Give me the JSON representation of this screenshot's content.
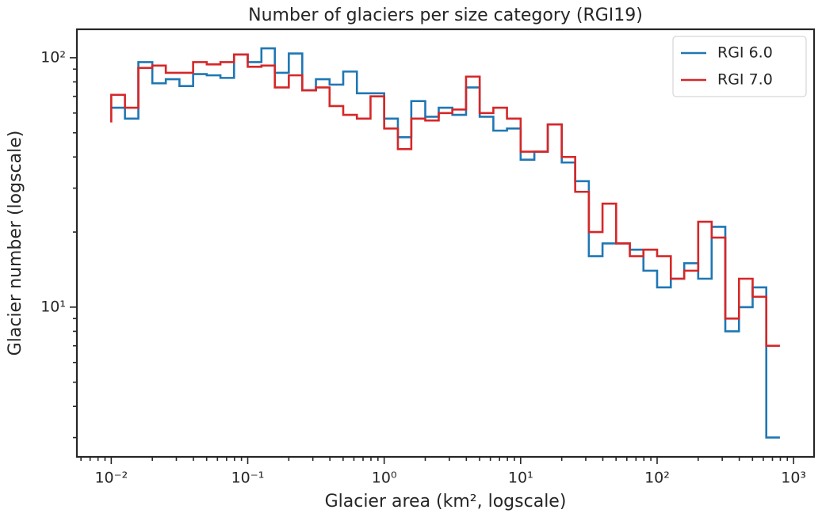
{
  "chart_data": {
    "type": "line",
    "step": "pre",
    "title": "Number of glaciers per size category (RGI19)",
    "x_label": "Glacier area (km², logscale)",
    "y_label": "Glacier number (logscale)",
    "x_log": true,
    "y_log": true,
    "legend": "upper right",
    "x": [
      0.01,
      0.0126,
      0.0158,
      0.02,
      0.0251,
      0.0316,
      0.0398,
      0.0501,
      0.0631,
      0.0794,
      0.1,
      0.126,
      0.158,
      0.2,
      0.251,
      0.316,
      0.398,
      0.501,
      0.631,
      0.794,
      1,
      1.26,
      1.58,
      2,
      2.51,
      3.16,
      3.98,
      5.01,
      6.31,
      7.94,
      10,
      12.6,
      15.8,
      20,
      25.1,
      31.6,
      39.8,
      50.1,
      63.1,
      79.4,
      100,
      126,
      158,
      200,
      251,
      316,
      398,
      501,
      631,
      794
    ],
    "series": [
      {
        "name": "RGI 6.0",
        "color": "#1f77b4",
        "values": [
          63,
          63,
          57,
          96,
          79,
          82,
          77,
          86,
          85,
          83,
          103,
          96,
          109,
          87,
          104,
          74,
          82,
          78,
          88,
          72,
          72,
          57,
          48,
          67,
          58,
          63,
          59,
          76,
          58,
          51,
          52,
          39,
          42,
          54,
          38,
          32,
          16,
          18,
          18,
          17,
          14,
          12,
          13,
          15,
          13,
          21,
          8,
          10,
          12,
          3
        ]
      },
      {
        "name": "RGI 7.0",
        "color": "#d62728",
        "values": [
          55,
          71,
          63,
          91,
          93,
          87,
          87,
          96,
          94,
          96,
          103,
          92,
          93,
          76,
          85,
          74,
          76,
          64,
          59,
          57,
          70,
          52,
          43,
          57,
          56,
          60,
          62,
          84,
          60,
          63,
          57,
          42,
          42,
          54,
          40,
          29,
          20,
          26,
          18,
          16,
          17,
          16,
          13,
          14,
          22,
          19,
          9,
          13,
          11,
          7
        ]
      }
    ],
    "xlim": [
      0.0056,
      1413
    ],
    "ylim": [
      2.51,
      130
    ],
    "xticks": [
      {
        "value": 0.01,
        "label": "10⁻²"
      },
      {
        "value": 0.1,
        "label": "10⁻¹"
      },
      {
        "value": 1,
        "label": "10⁰"
      },
      {
        "value": 10,
        "label": "10¹"
      },
      {
        "value": 100,
        "label": "10²"
      },
      {
        "value": 1000,
        "label": "10³"
      }
    ],
    "yticks": [
      {
        "value": 10,
        "label": "10¹"
      },
      {
        "value": 100,
        "label": "10²"
      }
    ]
  }
}
